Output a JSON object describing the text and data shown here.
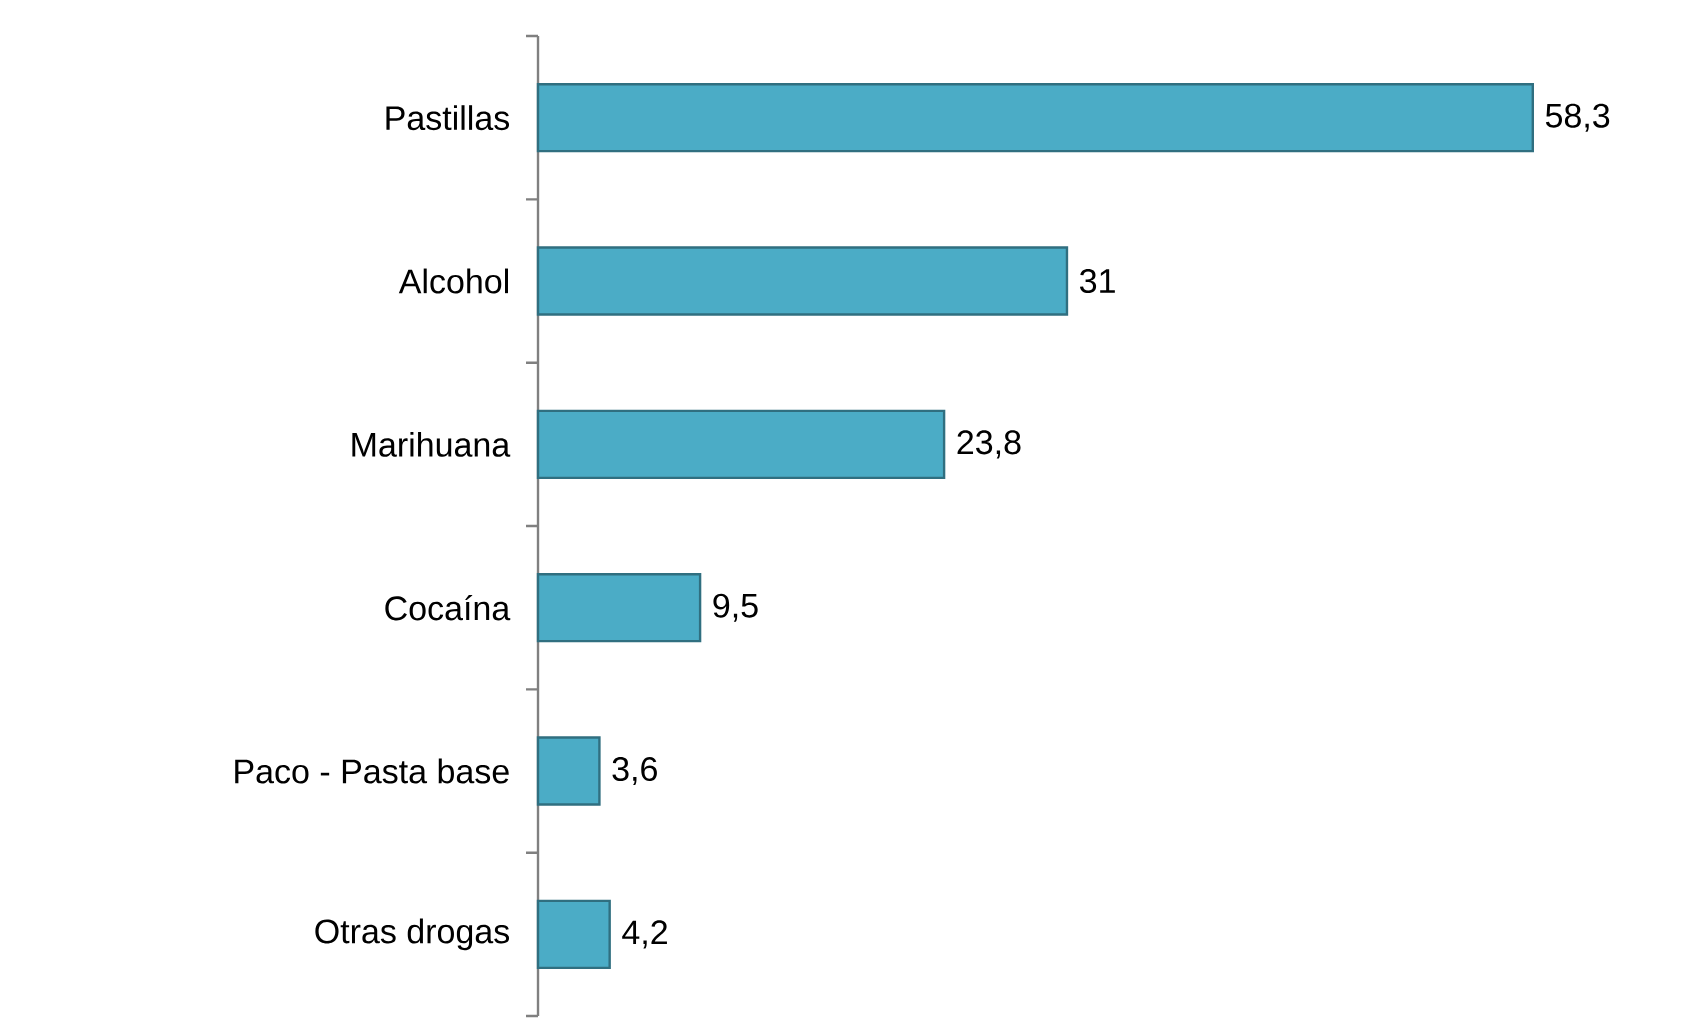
{
  "chart_data": {
    "type": "bar",
    "orientation": "horizontal",
    "categories": [
      "Pastillas",
      "Alcohol",
      "Marihuana",
      "Cocaína",
      "Paco - Pasta base",
      "Otras drogas"
    ],
    "values": [
      58.3,
      31,
      23.8,
      9.5,
      3.6,
      4.2
    ],
    "value_labels": [
      "58,3",
      "31",
      "23,8",
      "9,5",
      "3,6",
      "4,2"
    ],
    "color": "#4bacc6"
  }
}
